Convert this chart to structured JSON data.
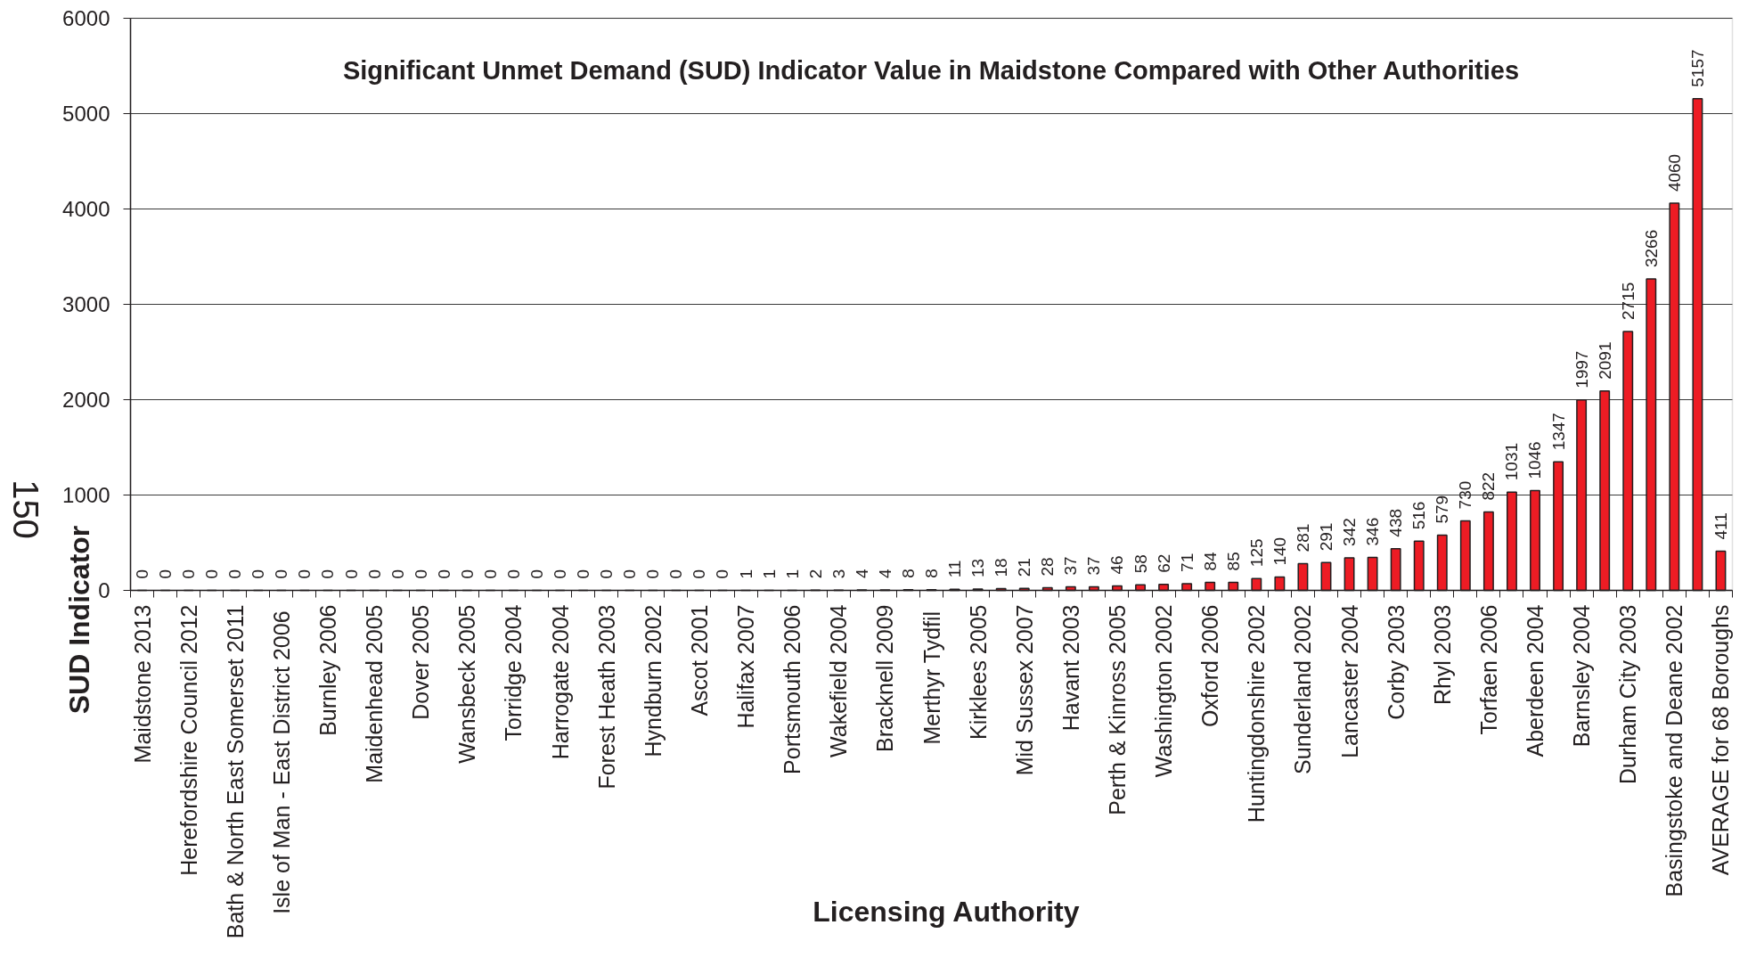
{
  "chart_data": {
    "type": "bar",
    "title": "Significant Unmet Demand (SUD) Indicator Value in Maidstone Compared with Other Authorities",
    "xlabel": "Licensing Authority",
    "ylabel": "SUD Indicator",
    "annotations": [
      "150"
    ],
    "categories": [
      "Maidstone 2013",
      null,
      "Herefordshire Council 2012",
      null,
      "Bath & North East Somerset 2011",
      null,
      "Isle of Man - East District  2006",
      null,
      "Burnley 2006",
      null,
      "Maidenhead 2005",
      null,
      "Dover 2005",
      null,
      "Wansbeck 2005",
      null,
      "Torridge 2004",
      null,
      "Harrogate 2004",
      null,
      "Forest Heath 2003",
      null,
      "Hyndburn 2002",
      null,
      "Ascot 2001",
      null,
      "Halifax 2007",
      null,
      "Portsmouth 2006",
      null,
      "Wakefield 2004",
      null,
      "Bracknell 2009",
      null,
      "Merthyr  Tydfil",
      null,
      "Kirklees 2005",
      null,
      "Mid Sussex 2007",
      null,
      "Havant 2003",
      null,
      "Perth & Kinross 2005",
      null,
      "Washington 2002",
      null,
      "Oxford 2006",
      null,
      "Huntingdonshire 2002",
      null,
      "Sunderland 2002",
      null,
      "Lancaster 2004",
      null,
      "Corby 2003",
      null,
      "Rhyl 2003",
      null,
      "Torfaen 2006",
      null,
      "Aberdeen 2004",
      null,
      "Barnsley 2004",
      null,
      "Durham City 2003",
      null,
      "Basingstoke and Deane 2002",
      null,
      "AVERAGE for 68 Boroughs"
    ],
    "values": [
      0,
      0,
      0,
      0,
      0,
      0,
      0,
      0,
      0,
      0,
      0,
      0,
      0,
      0,
      0,
      0,
      0,
      0,
      0,
      0,
      0,
      0,
      0,
      0,
      0,
      0,
      1,
      1,
      1,
      2,
      3,
      4,
      4,
      8,
      8,
      11,
      13,
      18,
      21,
      28,
      37,
      37,
      46,
      58,
      62,
      71,
      84,
      85,
      125,
      140,
      281,
      291,
      342,
      346,
      438,
      516,
      579,
      730,
      822,
      1031,
      1046,
      1347,
      1997,
      2091,
      2715,
      3266,
      4060,
      5157,
      411
    ],
    "color": "#ed1c24",
    "ylim": [
      0,
      6000
    ],
    "yticks": [
      0,
      1000,
      2000,
      3000,
      4000,
      5000,
      6000
    ],
    "grid": "y",
    "data_labels": true
  }
}
